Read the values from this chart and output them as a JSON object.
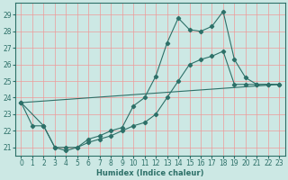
{
  "xlabel": "Humidex (Indice chaleur)",
  "bg_color": "#cce8e4",
  "grid_color": "#ee9999",
  "line_color": "#2d7068",
  "xlim": [
    -0.5,
    23.5
  ],
  "ylim": [
    20.5,
    29.7
  ],
  "yticks": [
    21,
    22,
    23,
    24,
    25,
    26,
    27,
    28,
    29
  ],
  "xticks": [
    0,
    1,
    2,
    3,
    4,
    5,
    6,
    7,
    8,
    9,
    10,
    11,
    12,
    13,
    14,
    15,
    16,
    17,
    18,
    19,
    20,
    21,
    22,
    23
  ],
  "line1_x": [
    0,
    1,
    2,
    3,
    4,
    5,
    6,
    7,
    8,
    9,
    10,
    11,
    12,
    13,
    14,
    15,
    16,
    17,
    18,
    19,
    20,
    21,
    22,
    23
  ],
  "line1_y": [
    23.7,
    22.3,
    22.3,
    21.0,
    21.0,
    21.0,
    21.5,
    21.7,
    22.0,
    22.2,
    23.5,
    24.0,
    25.3,
    27.3,
    28.8,
    28.1,
    28.0,
    28.3,
    29.2,
    26.3,
    25.2,
    24.8,
    24.8,
    24.8
  ],
  "line2_x": [
    0,
    2,
    3,
    4,
    5,
    6,
    7,
    8,
    9,
    10,
    11,
    12,
    13,
    14,
    15,
    16,
    17,
    18,
    19,
    20,
    21,
    22,
    23
  ],
  "line2_y": [
    23.7,
    22.3,
    21.0,
    20.8,
    21.0,
    21.3,
    21.5,
    21.7,
    22.0,
    22.3,
    22.5,
    23.0,
    24.0,
    25.0,
    26.0,
    26.3,
    26.5,
    26.8,
    24.8,
    24.8,
    24.8,
    24.8,
    24.8
  ],
  "line3_x": [
    0,
    23
  ],
  "line3_y": [
    23.7,
    24.8
  ]
}
